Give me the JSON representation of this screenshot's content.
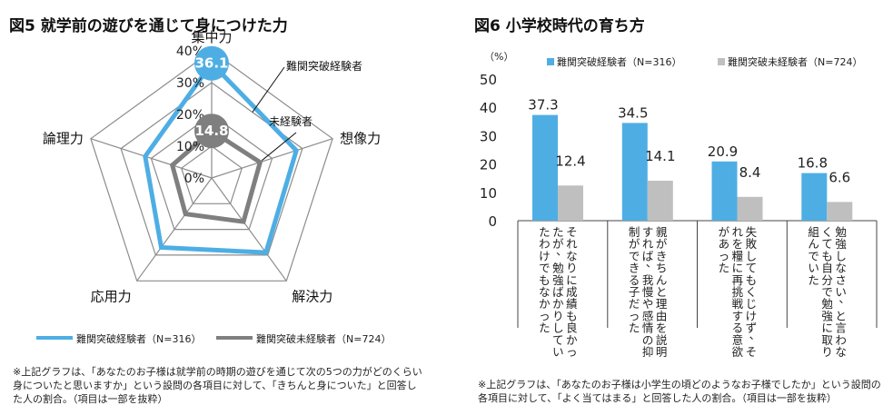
{
  "left_figure": {
    "title": "図5 就学前の遊びを通じて身につけた力",
    "note": "※上記グラフは、「あなたのお子様は就学前の時期の遊びを通じて次の5つの力がどのくらい身についたと思いますか」という設問の各項目に対して、「きちんと身についた」と回答した人の割合。（項目は一部を抜粋）",
    "callout_high": "難関突破経験者",
    "callout_low": "未経験者"
  },
  "right_figure": {
    "title": "図6 小学校時代の育ち方",
    "note": "※上記グラフは、「あなたのお子様は小学生の頃どのようなお子様でしたか」という設問の各項目に対して、「よく当てはまる」と回答した人の割合。（項目は一部を抜粋）",
    "unit": "（%）"
  },
  "chart_data": [
    {
      "type": "radar",
      "axes": [
        "集中力",
        "想像力",
        "解決力",
        "応用力",
        "論理力"
      ],
      "radial_ticks": [
        "0%",
        "10%",
        "20%",
        "30%",
        "40%"
      ],
      "rlim": [
        0,
        40
      ],
      "series": [
        {
          "name": "難関突破経験者（N=316）",
          "color": "#4eaee4",
          "values": [
            36.1,
            28,
            29,
            27,
            22
          ],
          "callout_value": "36.1"
        },
        {
          "name": "難関突破未経験者（N=724）",
          "color": "#7f7f7f",
          "values": [
            14.8,
            16,
            17,
            14,
            13
          ],
          "callout_value": "14.8"
        }
      ],
      "legend_position": "bottom"
    },
    {
      "type": "bar",
      "categories": [
        "それなりに成績も良かったが、勉強ばかりしていたわけでもなかった",
        "親がきちんと理由を説明すれば、我慢や感情の抑制ができる子だった",
        "失敗してもくじけず、それを糧に再挑戦する意欲があった",
        "勉強しなさい、と言わなくても自分で勉強に取り組んでいた"
      ],
      "series": [
        {
          "name": "難関突破経験者（N=316）",
          "color": "#4eaee4",
          "values": [
            37.3,
            34.5,
            20.9,
            16.8
          ]
        },
        {
          "name": "難関突破未経験者（N=724）",
          "color": "#bfbfbf",
          "values": [
            12.4,
            14.1,
            8.4,
            6.6
          ]
        }
      ],
      "yticks": [
        0,
        10,
        20,
        30,
        40,
        50
      ],
      "ylim": [
        0,
        50
      ],
      "legend_position": "top"
    }
  ]
}
